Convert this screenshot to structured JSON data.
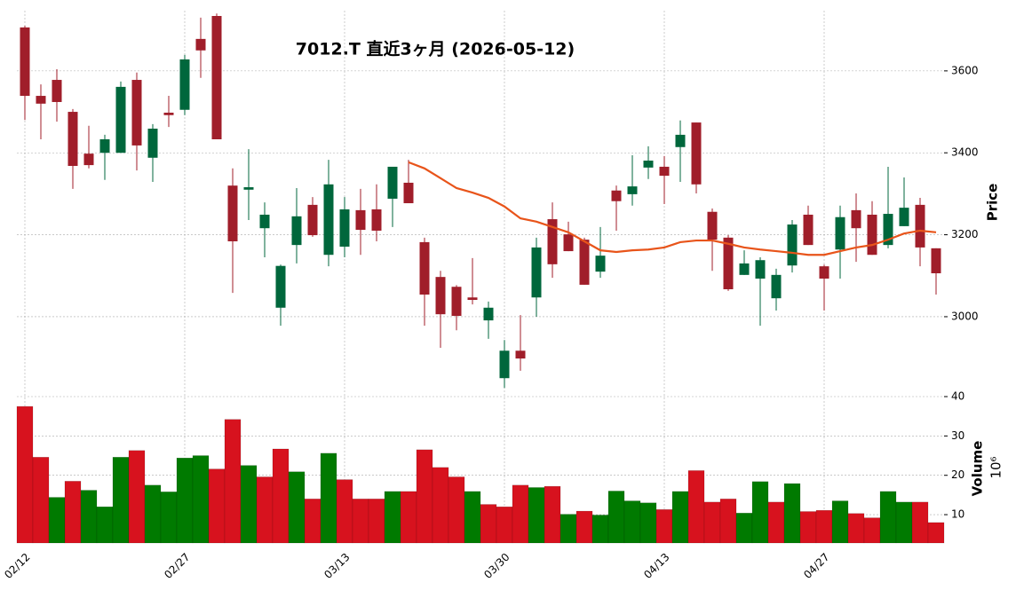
{
  "chart_data": {
    "type": "candlestick",
    "title": "7012.T  直近3ヶ月  (2026-05-12)",
    "y_label": "Price",
    "volume_label": "Volume",
    "volume_offset_label": "10⁶",
    "categories": [
      "02/12",
      null,
      null,
      null,
      null,
      null,
      null,
      null,
      null,
      null,
      "02/27",
      null,
      null,
      null,
      null,
      null,
      null,
      null,
      null,
      null,
      "03/13",
      null,
      null,
      null,
      null,
      null,
      null,
      null,
      null,
      null,
      "03/30",
      null,
      null,
      null,
      null,
      null,
      null,
      null,
      null,
      null,
      "04/13",
      null,
      null,
      null,
      null,
      null,
      null,
      null,
      null,
      null,
      "04/27",
      null,
      null,
      null,
      null,
      null,
      null,
      null
    ],
    "open": [
      3706,
      3539,
      3578,
      3500,
      3398,
      3400,
      3400,
      3578,
      3388,
      3498,
      3505,
      3678,
      3734,
      3320,
      3310,
      3216,
      3022,
      3175,
      3273,
      3151,
      3171,
      3260,
      3262,
      3288,
      3327,
      3182,
      3097,
      3073,
      3047,
      2991,
      2850,
      2917,
      3047,
      3238,
      3201,
      3188,
      3110,
      3308,
      3299,
      3364,
      3366,
      3414,
      3474,
      3256,
      3193,
      3102,
      3093,
      3045,
      3125,
      3249,
      3123,
      3164,
      3260,
      3249,
      3175,
      3221,
      3273,
      3167
    ],
    "high": [
      3710,
      3567,
      3604,
      3507,
      3466,
      3444,
      3574,
      3596,
      3470,
      3539,
      3639,
      3730,
      3740,
      3362,
      3409,
      3279,
      3127,
      3314,
      3292,
      3383,
      3292,
      3312,
      3323,
      3366,
      3383,
      3193,
      3112,
      3077,
      3143,
      3037,
      2943,
      3004,
      3193,
      3279,
      3232,
      3193,
      3219,
      3320,
      3394,
      3416,
      3392,
      3479,
      3474,
      3264,
      3199,
      3162,
      3145,
      3117,
      3236,
      3271,
      3127,
      3271,
      3301,
      3282,
      3366,
      3340,
      3290,
      3167
    ],
    "low": [
      3480,
      3433,
      3476,
      3312,
      3362,
      3334,
      3400,
      3357,
      3329,
      3463,
      3492,
      3583,
      3433,
      3058,
      3236,
      3145,
      2978,
      3130,
      3195,
      3123,
      3145,
      3151,
      3184,
      3219,
      3277,
      2978,
      2924,
      2967,
      3030,
      2946,
      2826,
      2868,
      3000,
      3095,
      3160,
      3078,
      3095,
      3210,
      3271,
      3336,
      3275,
      3329,
      3301,
      3112,
      3063,
      3102,
      2978,
      3015,
      3108,
      3175,
      3015,
      3093,
      3134,
      3151,
      3167,
      3221,
      3123,
      3054
    ],
    "close": [
      3539,
      3520,
      3524,
      3368,
      3370,
      3433,
      3561,
      3418,
      3459,
      3492,
      3628,
      3650,
      3433,
      3184,
      3316,
      3249,
      3124,
      3245,
      3199,
      3323,
      3262,
      3212,
      3210,
      3366,
      3277,
      3054,
      3006,
      3002,
      3041,
      3022,
      2917,
      2898,
      3169,
      3128,
      3160,
      3078,
      3149,
      3282,
      3318,
      3381,
      3344,
      3444,
      3323,
      3188,
      3067,
      3130,
      3138,
      3102,
      3225,
      3175,
      3093,
      3243,
      3216,
      3151,
      3251,
      3266,
      3169,
      3106
    ],
    "volume": [
      37.5,
      24.6,
      14.4,
      18.5,
      16.2,
      12.0,
      24.6,
      26.3,
      17.5,
      15.8,
      24.4,
      25.0,
      21.6,
      34.2,
      22.5,
      19.6,
      26.7,
      20.9,
      14.0,
      25.6,
      18.9,
      14.0,
      14.0,
      15.9,
      15.9,
      26.5,
      22.0,
      19.6,
      15.9,
      12.6,
      12.0,
      17.5,
      16.9,
      17.2,
      10.1,
      10.9,
      9.9,
      16.0,
      13.5,
      13.0,
      11.3,
      15.9,
      21.2,
      13.2,
      14.0,
      10.4,
      18.4,
      13.2,
      17.9,
      10.8,
      11.1,
      13.5,
      10.3,
      9.2,
      15.9,
      13.2,
      13.2,
      8.0
    ],
    "moving_average": [
      null,
      null,
      null,
      null,
      null,
      null,
      null,
      null,
      null,
      null,
      null,
      null,
      null,
      null,
      null,
      null,
      null,
      null,
      null,
      null,
      null,
      null,
      null,
      null,
      3377,
      3362,
      3338,
      3314,
      3303,
      3290,
      3269,
      3240,
      3232,
      3219,
      3206,
      3184,
      3162,
      3158,
      3162,
      3164,
      3169,
      3182,
      3186,
      3186,
      3178,
      3169,
      3164,
      3160,
      3156,
      3151,
      3151,
      3160,
      3169,
      3175,
      3188,
      3203,
      3210,
      3206
    ],
    "ylim": [
      2805,
      3747
    ],
    "yticks": [
      3000,
      3200,
      3400,
      3600
    ],
    "volume_ylim": [
      2.8,
      40
    ],
    "volume_yticks": [
      10,
      20,
      30,
      40
    ],
    "up_color": "#00673c",
    "down_color": "#a01e2a",
    "volume_up_color": "#007a00",
    "volume_down_color": "#d7121e",
    "ma_color": "#e8541a",
    "grid": true
  }
}
